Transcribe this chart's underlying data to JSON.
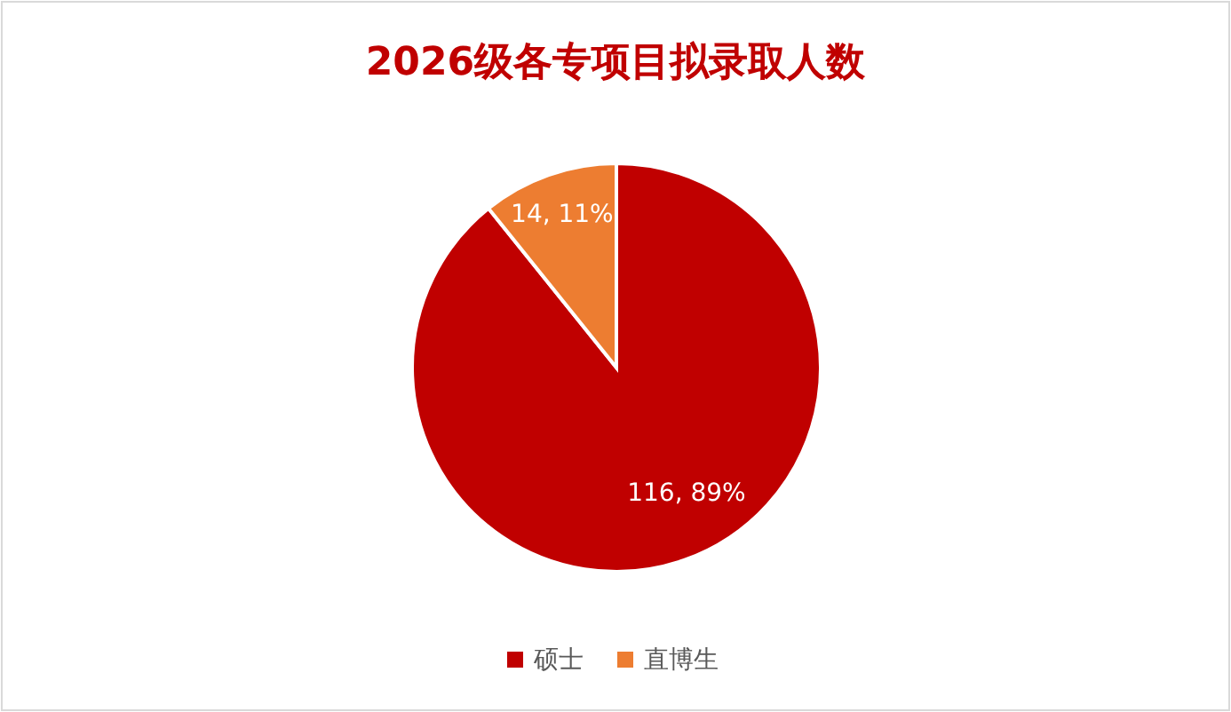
{
  "chart_data": {
    "type": "pie",
    "title": "2026级各专项目拟录取人数",
    "categories": [
      "硕士",
      "直博生"
    ],
    "values": [
      116,
      14
    ],
    "colors": [
      "#c00000",
      "#ed7d31"
    ],
    "value_labels": [
      "116, 89%",
      "14, 11%"
    ],
    "legend": "bottom"
  }
}
